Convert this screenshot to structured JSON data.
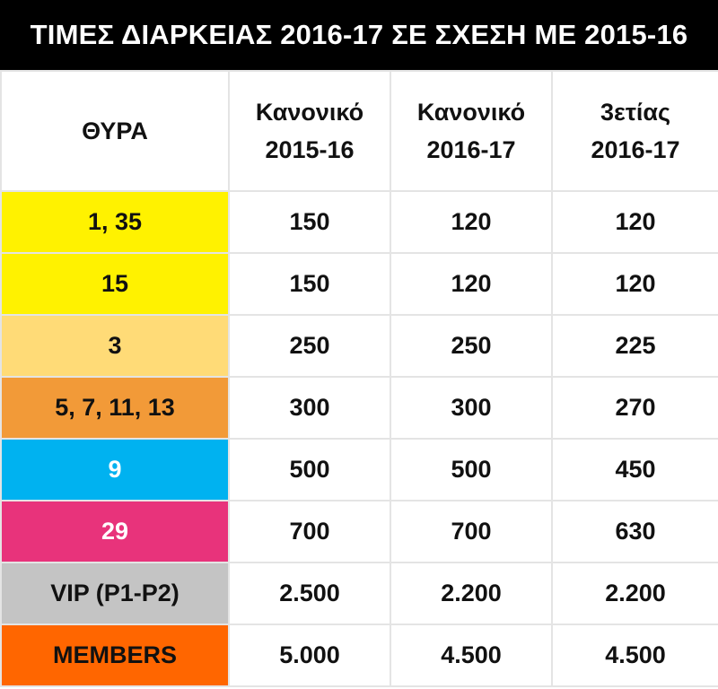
{
  "title": "ΤΙΜΕΣ ΔΙΑΡΚΕΙΑΣ 2016-17 ΣΕ ΣΧΕΣΗ ΜΕ 2015-16",
  "header": {
    "col1": "ΘΥΡΑ",
    "col2_line1": "Κανονικό",
    "col2_line2": "2015-16",
    "col3_line1": "Κανονικό",
    "col3_line2": "2016-17",
    "col4_line1": "3ετίας",
    "col4_line2": "2016-17"
  },
  "rows": [
    {
      "port": "1, 35",
      "color": "#fff200",
      "c2015": "150",
      "c2016": "120",
      "c3y": "120"
    },
    {
      "port": "15",
      "color": "#fff200",
      "c2015": "150",
      "c2016": "120",
      "c3y": "120"
    },
    {
      "port": "3",
      "color": "#ffdb77",
      "c2015": "250",
      "c2016": "250",
      "c3y": "225"
    },
    {
      "port": "5, 7, 11, 13",
      "color": "#f29a38",
      "c2015": "300",
      "c2016": "300",
      "c3y": "270"
    },
    {
      "port": "9",
      "color": "#00b2f0",
      "c2015": "500",
      "c2016": "500",
      "c3y": "450"
    },
    {
      "port": "29",
      "color": "#e8337b",
      "c2015": "700",
      "c2016": "700",
      "c3y": "630"
    },
    {
      "port": "VIP (P1-P2)",
      "color": "#c4c4c4",
      "c2015": "2.500",
      "c2016": "2.200",
      "c3y": "2.200"
    },
    {
      "port": "MEMBERS",
      "color": "#ff6600",
      "c2015": "5.000",
      "c2016": "4.500",
      "c3y": "4.500"
    }
  ]
}
